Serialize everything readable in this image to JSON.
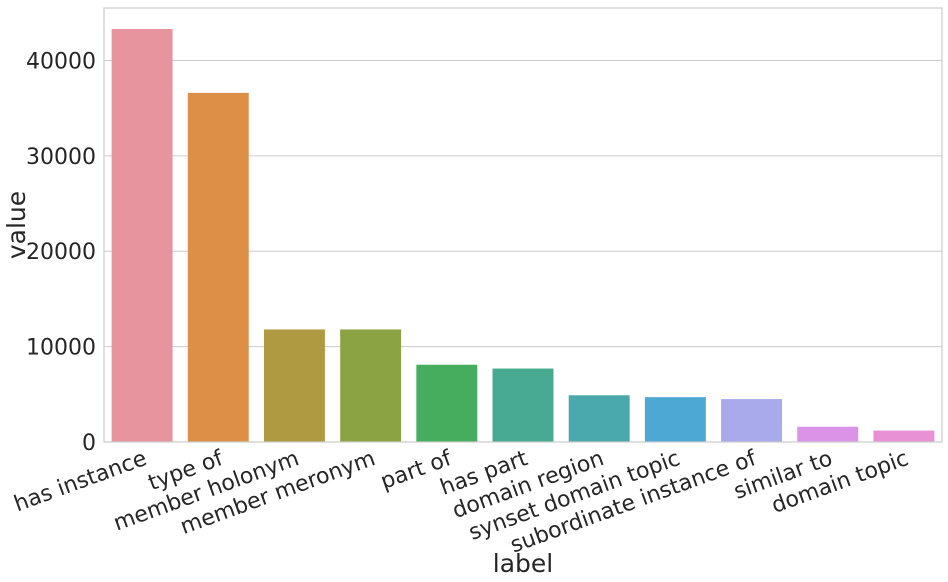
{
  "chart_data": {
    "type": "bar",
    "categories": [
      "has instance",
      "type of",
      "member holonym",
      "member meronym",
      "part of",
      "has part",
      "domain region",
      "synset domain topic",
      "subordinate instance of",
      "similar to",
      "domain topic"
    ],
    "values": [
      43300,
      36600,
      11800,
      11800,
      8100,
      7700,
      4900,
      4700,
      4500,
      1600,
      1200
    ],
    "colors": [
      "#e8949f",
      "#dd8f48",
      "#b09a41",
      "#8ba443",
      "#46ad5e",
      "#48aa90",
      "#4aa9ad",
      "#4ea8d4",
      "#a9aaec",
      "#db93e8",
      "#e891d4"
    ],
    "title": "",
    "xlabel": "label",
    "ylabel": "value",
    "ylim": [
      0,
      45500
    ],
    "yticks": [
      0,
      10000,
      20000,
      30000,
      40000
    ],
    "grid": "horizontal"
  }
}
